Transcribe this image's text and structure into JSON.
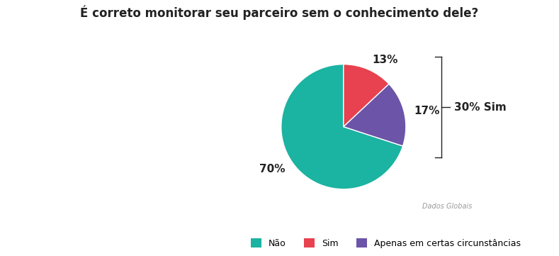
{
  "chart_data": {
    "type": "pie",
    "title": "É correto monitorar seu parceiro sem o conhecimento dele?",
    "categories": [
      "Não",
      "Sim",
      "Apenas em certas circunstâncias"
    ],
    "values": [
      70,
      13,
      17
    ],
    "value_labels": [
      "70%",
      "13%",
      "17%"
    ],
    "colors": [
      "#1bb3a1",
      "#e8414f",
      "#6c54a8"
    ],
    "annotation": "30% Sim",
    "source": "Dados Globais",
    "legend": "lower center",
    "data_labels": true
  }
}
